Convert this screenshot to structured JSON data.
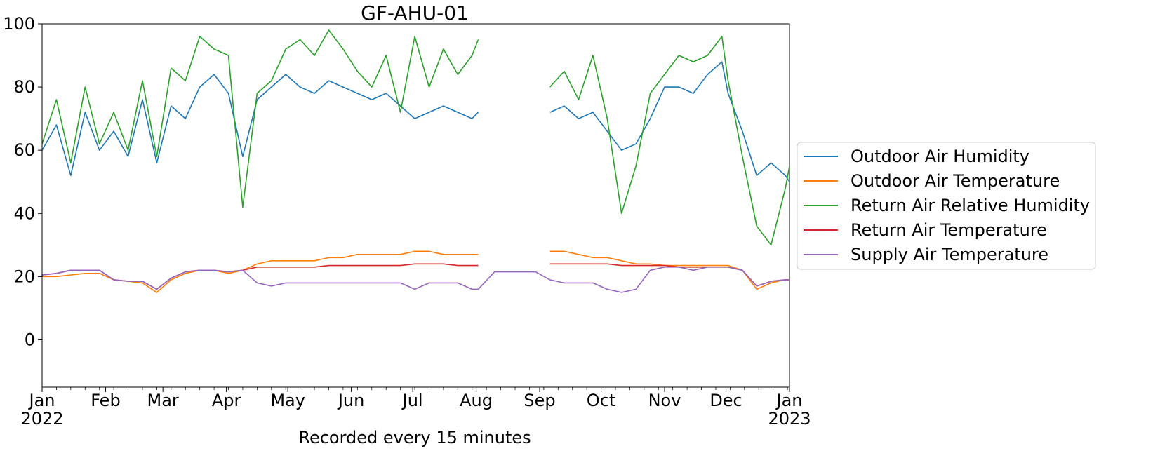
{
  "chart_data": {
    "type": "line",
    "title": "GF-AHU-01",
    "xlabel": "Recorded every 15 minutes",
    "ylabel": "",
    "xlim": [
      "2022-01-01",
      "2023-01-01"
    ],
    "ylim": [
      -15,
      100
    ],
    "y_ticks": [
      0,
      20,
      40,
      60,
      80,
      100
    ],
    "x_ticks": [
      {
        "date": "2022-01-01",
        "label": "Jan",
        "sublabel": "2022"
      },
      {
        "date": "2022-02-01",
        "label": "Feb",
        "sublabel": ""
      },
      {
        "date": "2022-03-01",
        "label": "Mar",
        "sublabel": ""
      },
      {
        "date": "2022-04-01",
        "label": "Apr",
        "sublabel": ""
      },
      {
        "date": "2022-05-01",
        "label": "May",
        "sublabel": ""
      },
      {
        "date": "2022-06-01",
        "label": "Jun",
        "sublabel": ""
      },
      {
        "date": "2022-07-01",
        "label": "Jul",
        "sublabel": ""
      },
      {
        "date": "2022-08-01",
        "label": "Aug",
        "sublabel": ""
      },
      {
        "date": "2022-09-01",
        "label": "Sep",
        "sublabel": ""
      },
      {
        "date": "2022-10-01",
        "label": "Oct",
        "sublabel": ""
      },
      {
        "date": "2022-11-01",
        "label": "Nov",
        "sublabel": ""
      },
      {
        "date": "2022-12-01",
        "label": "Dec",
        "sublabel": ""
      },
      {
        "date": "2023-01-01",
        "label": "Jan",
        "sublabel": "2023"
      }
    ],
    "grid": false,
    "legend_position": "right",
    "series": [
      {
        "name": "Outdoor Air Humidity",
        "color": "#1f77b4",
        "x": [
          "2022-01-01",
          "2022-01-08",
          "2022-01-15",
          "2022-01-22",
          "2022-01-29",
          "2022-02-05",
          "2022-02-12",
          "2022-02-19",
          "2022-02-26",
          "2022-03-05",
          "2022-03-12",
          "2022-03-19",
          "2022-03-26",
          "2022-04-02",
          "2022-04-09",
          "2022-04-16",
          "2022-04-23",
          "2022-04-30",
          "2022-05-07",
          "2022-05-14",
          "2022-05-21",
          "2022-05-28",
          "2022-06-04",
          "2022-06-11",
          "2022-06-18",
          "2022-06-25",
          "2022-07-02",
          "2022-07-09",
          "2022-07-16",
          "2022-07-23",
          "2022-07-30",
          "2022-08-02",
          null,
          "2022-09-06",
          "2022-09-13",
          "2022-09-20",
          "2022-09-27",
          "2022-10-04",
          "2022-10-11",
          "2022-10-18",
          "2022-10-25",
          "2022-11-01",
          "2022-11-08",
          "2022-11-15",
          "2022-11-22",
          "2022-11-29",
          "2022-12-02",
          "2022-12-09",
          "2022-12-16",
          "2022-12-23",
          "2022-12-30",
          "2023-01-01"
        ],
        "y": [
          60,
          68,
          52,
          72,
          60,
          66,
          58,
          76,
          56,
          74,
          70,
          80,
          84,
          78,
          58,
          76,
          80,
          84,
          80,
          78,
          82,
          80,
          78,
          76,
          78,
          74,
          70,
          72,
          74,
          72,
          70,
          72,
          null,
          72,
          74,
          70,
          72,
          66,
          60,
          62,
          70,
          80,
          80,
          78,
          84,
          88,
          78,
          66,
          52,
          56,
          52,
          50
        ]
      },
      {
        "name": "Outdoor Air Temperature",
        "color": "#ff7f0e",
        "x": [
          "2022-01-01",
          "2022-01-08",
          "2022-01-15",
          "2022-01-22",
          "2022-01-29",
          "2022-02-05",
          "2022-02-12",
          "2022-02-19",
          "2022-02-26",
          "2022-03-05",
          "2022-03-12",
          "2022-03-19",
          "2022-03-26",
          "2022-04-02",
          "2022-04-09",
          "2022-04-16",
          "2022-04-23",
          "2022-04-30",
          "2022-05-07",
          "2022-05-14",
          "2022-05-21",
          "2022-05-28",
          "2022-06-04",
          "2022-06-11",
          "2022-06-18",
          "2022-06-25",
          "2022-07-02",
          "2022-07-09",
          "2022-07-16",
          "2022-07-23",
          "2022-07-30",
          "2022-08-02",
          null,
          "2022-09-06",
          "2022-09-13",
          "2022-09-20",
          "2022-09-27",
          "2022-10-04",
          "2022-10-11",
          "2022-10-18",
          "2022-10-25",
          "2022-11-01",
          "2022-11-08",
          "2022-11-15",
          "2022-11-22",
          "2022-11-29",
          "2022-12-02",
          "2022-12-09",
          "2022-12-16",
          "2022-12-23",
          "2022-12-30",
          "2023-01-01"
        ],
        "y": [
          20,
          20,
          20.5,
          21,
          21,
          19,
          18.5,
          18,
          15,
          19,
          21,
          22,
          22,
          21,
          22,
          24,
          25,
          25,
          25,
          25,
          26,
          26,
          27,
          27,
          27,
          27,
          28,
          28,
          27,
          27,
          27,
          27,
          null,
          28,
          28,
          27,
          26,
          26,
          25,
          24,
          24,
          23.5,
          23.5,
          23.5,
          23.5,
          23.5,
          23.5,
          22,
          16,
          18,
          19,
          19
        ]
      },
      {
        "name": "Return Air Relative Humidity",
        "color": "#2ca02c",
        "x": [
          "2022-01-01",
          "2022-01-08",
          "2022-01-15",
          "2022-01-22",
          "2022-01-29",
          "2022-02-05",
          "2022-02-12",
          "2022-02-19",
          "2022-02-26",
          "2022-03-05",
          "2022-03-12",
          "2022-03-19",
          "2022-03-26",
          "2022-04-02",
          "2022-04-09",
          "2022-04-16",
          "2022-04-23",
          "2022-04-30",
          "2022-05-07",
          "2022-05-14",
          "2022-05-21",
          "2022-05-28",
          "2022-06-04",
          "2022-06-11",
          "2022-06-18",
          "2022-06-25",
          "2022-07-02",
          "2022-07-09",
          "2022-07-16",
          "2022-07-23",
          "2022-07-30",
          "2022-08-02",
          null,
          "2022-09-06",
          "2022-09-13",
          "2022-09-20",
          "2022-09-27",
          "2022-10-04",
          "2022-10-11",
          "2022-10-18",
          "2022-10-25",
          "2022-11-01",
          "2022-11-08",
          "2022-11-15",
          "2022-11-22",
          "2022-11-29",
          "2022-12-02",
          "2022-12-09",
          "2022-12-16",
          "2022-12-23",
          "2022-12-30",
          "2023-01-01"
        ],
        "y": [
          62,
          76,
          56,
          80,
          62,
          72,
          60,
          82,
          58,
          86,
          82,
          96,
          92,
          90,
          42,
          78,
          82,
          92,
          95,
          90,
          98,
          92,
          85,
          80,
          90,
          72,
          96,
          80,
          92,
          84,
          90,
          95,
          null,
          80,
          85,
          76,
          90,
          70,
          40,
          55,
          78,
          84,
          90,
          88,
          90,
          96,
          82,
          58,
          36,
          30,
          48,
          55
        ]
      },
      {
        "name": "Return Air Temperature",
        "color": "#d62728",
        "x": [
          "2022-01-01",
          "2022-01-08",
          "2022-01-15",
          "2022-01-22",
          "2022-01-29",
          "2022-02-05",
          "2022-02-12",
          "2022-02-19",
          "2022-02-26",
          "2022-03-05",
          "2022-03-12",
          "2022-03-19",
          "2022-03-26",
          "2022-04-02",
          "2022-04-09",
          "2022-04-16",
          "2022-04-23",
          "2022-04-30",
          "2022-05-07",
          "2022-05-14",
          "2022-05-21",
          "2022-05-28",
          "2022-06-04",
          "2022-06-11",
          "2022-06-18",
          "2022-06-25",
          "2022-07-02",
          "2022-07-09",
          "2022-07-16",
          "2022-07-23",
          "2022-07-30",
          "2022-08-02",
          null,
          "2022-09-06",
          "2022-09-13",
          "2022-09-20",
          "2022-09-27",
          "2022-10-04",
          "2022-10-11",
          "2022-10-18",
          "2022-10-25",
          "2022-11-01",
          "2022-11-08",
          "2022-11-15",
          "2022-11-22",
          "2022-11-29",
          "2022-12-02",
          "2022-12-09",
          "2022-12-16",
          "2022-12-23",
          "2022-12-30",
          "2023-01-01"
        ],
        "y": [
          20.5,
          21,
          22,
          22,
          22,
          19,
          18.5,
          18.5,
          16,
          19.5,
          21.5,
          22,
          22,
          21.5,
          22,
          23,
          23,
          23,
          23,
          23,
          23.5,
          23.5,
          23.5,
          23.5,
          23.5,
          23.5,
          24,
          24,
          24,
          23.5,
          23.5,
          23.5,
          null,
          24,
          24,
          24,
          24,
          24,
          23.5,
          23.5,
          23.5,
          23.5,
          23,
          23,
          23,
          23,
          23,
          22,
          17,
          18.5,
          19,
          19
        ]
      },
      {
        "name": "Supply Air Temperature",
        "color": "#9467bd",
        "x": [
          "2022-01-01",
          "2022-01-08",
          "2022-01-15",
          "2022-01-22",
          "2022-01-29",
          "2022-02-05",
          "2022-02-12",
          "2022-02-19",
          "2022-02-26",
          "2022-03-05",
          "2022-03-12",
          "2022-03-19",
          "2022-03-26",
          "2022-04-02",
          "2022-04-09",
          "2022-04-16",
          "2022-04-23",
          "2022-04-30",
          "2022-05-07",
          "2022-05-14",
          "2022-05-21",
          "2022-05-28",
          "2022-06-04",
          "2022-06-11",
          "2022-06-18",
          "2022-06-25",
          "2022-07-02",
          "2022-07-09",
          "2022-07-16",
          "2022-07-23",
          "2022-07-30",
          "2022-08-02",
          "2022-08-10",
          "2022-08-20",
          "2022-08-30",
          "2022-09-06",
          "2022-09-13",
          "2022-09-20",
          "2022-09-27",
          "2022-10-04",
          "2022-10-11",
          "2022-10-18",
          "2022-10-25",
          "2022-11-01",
          "2022-11-08",
          "2022-11-15",
          "2022-11-22",
          "2022-11-29",
          "2022-12-02",
          "2022-12-09",
          "2022-12-16",
          "2022-12-23",
          "2022-12-30",
          "2023-01-01"
        ],
        "y": [
          20.5,
          21,
          22,
          22,
          22,
          19,
          18.5,
          18.5,
          16,
          19.5,
          21.5,
          22,
          22,
          21.5,
          22,
          18,
          17,
          18,
          18,
          18,
          18,
          18,
          18,
          18,
          18,
          18,
          16,
          18,
          18,
          18,
          16,
          16,
          21.5,
          21.5,
          21.5,
          19,
          18,
          18,
          18,
          16,
          15,
          16,
          22,
          23,
          23,
          22,
          23,
          23,
          23,
          22,
          17,
          18.5,
          19,
          19
        ]
      }
    ]
  }
}
